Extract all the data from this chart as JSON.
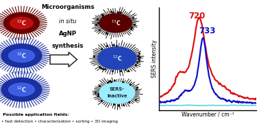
{
  "xlabel": "Wavenumber / cm⁻¹",
  "ylabel": "SERS intensity",
  "red_color": "#dd1111",
  "blue_color": "#1111cc",
  "cyan_color": "#44ccdd",
  "dark_blue": "#2233bb",
  "background": "#ffffff",
  "label_720": "720",
  "label_733": "733",
  "cell_dark_red_body": "#8b0000",
  "cell_dark_red_grad": "#cc0000",
  "cell_blue_body": "#2244cc",
  "cell_blue_bright": "#4466ff",
  "cell_spike_blue": "#2244cc",
  "cell_spike_dark": "#333333",
  "cell_cyan_body": "#aaeeff",
  "arrow_fill": "#ffffff",
  "arrow_edge": "#222222"
}
